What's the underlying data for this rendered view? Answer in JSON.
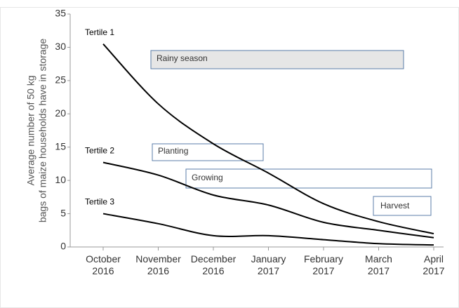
{
  "chart_data": {
    "type": "line",
    "ylabel": [
      "Average number of 50 kg",
      "bags of maize households have in storage"
    ],
    "categories": [
      "October 2016",
      "November 2016",
      "December 2016",
      "January 2017",
      "February 2017",
      "March 2017",
      "April 2017"
    ],
    "series": [
      {
        "name": "Tertile 1",
        "color": "#000000",
        "values": [
          30.5,
          21.5,
          15.5,
          11.1,
          6.5,
          3.8,
          2
        ]
      },
      {
        "name": "Tertile 2",
        "color": "#000000",
        "values": [
          12.7,
          10.8,
          7.8,
          6.3,
          3.7,
          2.5,
          1.4
        ]
      },
      {
        "name": "Tertile 3",
        "color": "#000000",
        "values": [
          5,
          3.5,
          1.7,
          1.7,
          1.1,
          0.5,
          0.3
        ]
      }
    ],
    "annotations": [
      "Rainy season",
      "Planting",
      "Growing",
      "Harvest"
    ],
    "ylim": [
      0,
      35
    ],
    "yticks": [
      0,
      5,
      10,
      15,
      20,
      25,
      30,
      35
    ],
    "grid": false
  }
}
